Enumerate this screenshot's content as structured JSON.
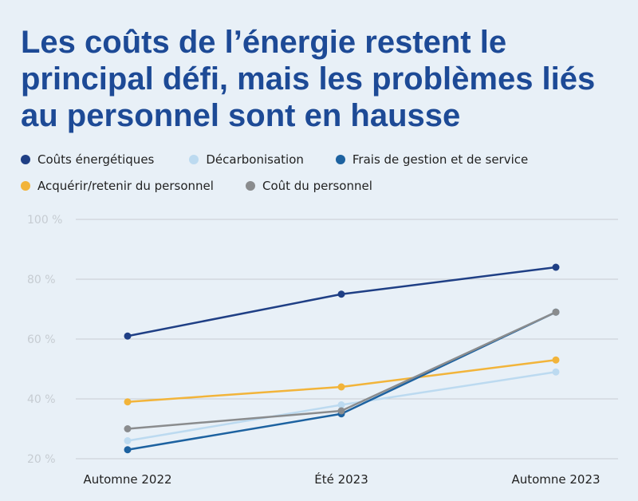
{
  "chart_data": {
    "type": "line",
    "title": "Les coûts de l’énergie restent le principal défi, mais les problèmes liés au personnel sont en hausse",
    "categories": [
      "Automne 2022",
      "Été 2023",
      "Automne 2023"
    ],
    "ylim": [
      20,
      100
    ],
    "yticks": [
      "100 %",
      "80 %",
      "60 %",
      "40 %",
      "20 %"
    ],
    "ytick_values": [
      100,
      80,
      60,
      40,
      20
    ],
    "grid": true,
    "legend_placement": "top",
    "series": [
      {
        "name": "Coûts énergétiques",
        "values": [
          61,
          75,
          84
        ],
        "color": "#1f3f85"
      },
      {
        "name": "Décarbonisation",
        "values": [
          26,
          38,
          49
        ],
        "color": "#bcdaf0"
      },
      {
        "name": "Frais de gestion et de service",
        "values": [
          23,
          35,
          69
        ],
        "color": "#1d62a0"
      },
      {
        "name": "Acquérir/retenir du personnel",
        "values": [
          39,
          44,
          53
        ],
        "color": "#f2b43a"
      },
      {
        "name": "Coût du personnel",
        "values": [
          30,
          36,
          69
        ],
        "color": "#8a8c8e"
      }
    ]
  }
}
